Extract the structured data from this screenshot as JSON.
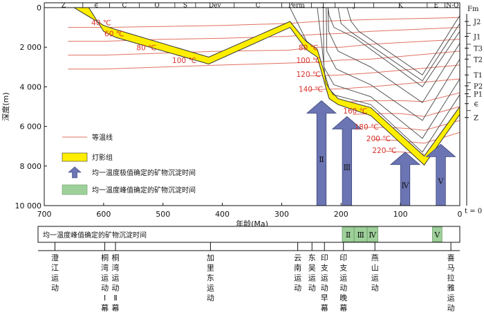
{
  "chart_data": {
    "type": "line",
    "xlabel": "年龄(Ma)",
    "ylabel": "深度(m)",
    "xlim": [
      700,
      0
    ],
    "ylim": [
      10000,
      0
    ],
    "x_ticks": [
      "700",
      "600",
      "500",
      "400",
      "300",
      "200",
      "100",
      "0"
    ],
    "y_ticks": [
      "0",
      "2 000",
      "4 000",
      "6 000",
      "8 000",
      "10 000"
    ],
    "periods": [
      {
        "label": "Z",
        "start": 700,
        "end": 635
      },
      {
        "label": "∈",
        "start": 635,
        "end": 590
      },
      {
        "label": "C",
        "start": 590,
        "end": 540
      },
      {
        "label": "O",
        "start": 540,
        "end": 480
      },
      {
        "label": "S",
        "start": 480,
        "end": 445
      },
      {
        "label": "Dev",
        "start": 445,
        "end": 380
      },
      {
        "label": "C",
        "start": 380,
        "end": 300
      },
      {
        "label": "Perm",
        "start": 300,
        "end": 250
      },
      {
        "label": "T",
        "start": 250,
        "end": 210
      },
      {
        "label": "J",
        "start": 210,
        "end": 145
      },
      {
        "label": "K",
        "start": 145,
        "end": 55
      },
      {
        "label": "E",
        "start": 55,
        "end": 25
      },
      {
        "label": "N-Q",
        "start": 25,
        "end": 0
      }
    ],
    "isotherm_labels": [
      {
        "label": "40 ℃",
        "age": 604,
        "depth": 900
      },
      {
        "label": "60 ℃",
        "age": 582,
        "depth": 1450
      },
      {
        "label": "80 ℃",
        "age": 528,
        "depth": 2150
      },
      {
        "label": "100 ℃",
        "age": 464,
        "depth": 2800
      },
      {
        "label": "80 ℃",
        "age": 255,
        "depth": 2150
      },
      {
        "label": "100 ℃",
        "age": 255,
        "depth": 2800
      },
      {
        "label": "120 ℃",
        "age": 255,
        "depth": 3500
      },
      {
        "label": "140 ℃",
        "age": 251,
        "depth": 4250
      },
      {
        "label": "160 ℃",
        "age": 176,
        "depth": 5350
      },
      {
        "label": "180 ℃",
        "age": 157,
        "depth": 6150
      },
      {
        "label": "200 ℃",
        "age": 137,
        "depth": 6750
      },
      {
        "label": "220 ℃",
        "age": 127,
        "depth": 7350
      }
    ],
    "dengying_group": {
      "top": [
        [
          650,
          0
        ],
        [
          600,
          900
        ],
        [
          580,
          1100
        ],
        [
          423,
          2500
        ],
        [
          286,
          700
        ],
        [
          259,
          1700
        ],
        [
          240,
          2100
        ],
        [
          225,
          3600
        ],
        [
          220,
          4100
        ],
        [
          205,
          4600
        ],
        [
          150,
          5050
        ],
        [
          60,
          7500
        ],
        [
          0,
          5000
        ]
      ],
      "bottom": [
        [
          0,
          5400
        ],
        [
          60,
          7950
        ],
        [
          150,
          5450
        ],
        [
          205,
          4900
        ],
        [
          220,
          4600
        ],
        [
          225,
          4100
        ],
        [
          240,
          2500
        ],
        [
          259,
          2100
        ],
        [
          286,
          1000
        ],
        [
          423,
          2850
        ],
        [
          580,
          1500
        ],
        [
          600,
          1200
        ],
        [
          625,
          0
        ]
      ]
    },
    "burial_lines": [
      [
        [
          222,
          0
        ],
        [
          220,
          400
        ],
        [
          212,
          1000
        ],
        [
          178,
          1500
        ],
        [
          63,
          4000
        ],
        [
          0,
          1200
        ]
      ],
      [
        [
          222,
          0
        ],
        [
          221,
          1200
        ],
        [
          205,
          2200
        ],
        [
          150,
          3000
        ],
        [
          63,
          4800
        ],
        [
          0,
          1800
        ]
      ],
      [
        [
          225,
          0
        ],
        [
          224,
          2200
        ],
        [
          208,
          3100
        ],
        [
          150,
          3900
        ],
        [
          63,
          5700
        ],
        [
          0,
          2600
        ]
      ],
      [
        [
          230,
          0
        ],
        [
          229,
          3000
        ],
        [
          212,
          3900
        ],
        [
          150,
          4500
        ],
        [
          63,
          6600
        ],
        [
          0,
          3600
        ]
      ],
      [
        [
          240,
          0
        ],
        [
          232,
          2000
        ],
        [
          226,
          3800
        ],
        [
          213,
          4400
        ],
        [
          150,
          4900
        ],
        [
          63,
          7300
        ],
        [
          0,
          4400
        ]
      ],
      [
        [
          286,
          0
        ],
        [
          258,
          1700
        ],
        [
          240,
          2100
        ]
      ],
      [
        [
          205,
          0
        ],
        [
          200,
          800
        ],
        [
          185,
          1200
        ],
        [
          63,
          3700
        ],
        [
          0,
          800
        ]
      ],
      [
        [
          190,
          0
        ],
        [
          183,
          700
        ],
        [
          170,
          1200
        ],
        [
          63,
          3400
        ],
        [
          0,
          400
        ]
      ]
    ],
    "isotherms": [
      [
        [
          660,
          1000
        ],
        [
          600,
          1000
        ],
        [
          500,
          950
        ],
        [
          400,
          900
        ],
        [
          290,
          800
        ],
        [
          240,
          700
        ],
        [
          200,
          650
        ],
        [
          150,
          600
        ],
        [
          0,
          500
        ]
      ],
      [
        [
          660,
          1700
        ],
        [
          600,
          1700
        ],
        [
          500,
          1600
        ],
        [
          400,
          1550
        ],
        [
          290,
          1450
        ],
        [
          240,
          1350
        ],
        [
          200,
          1300
        ],
        [
          150,
          1200
        ],
        [
          0,
          1000
        ]
      ],
      [
        [
          660,
          2400
        ],
        [
          600,
          2400
        ],
        [
          500,
          2300
        ],
        [
          400,
          2200
        ],
        [
          290,
          2150
        ],
        [
          240,
          2000
        ],
        [
          200,
          2000
        ],
        [
          150,
          1850
        ],
        [
          0,
          1600
        ]
      ],
      [
        [
          660,
          3100
        ],
        [
          600,
          3100
        ],
        [
          500,
          3000
        ],
        [
          400,
          2900
        ],
        [
          290,
          2800
        ],
        [
          240,
          2750
        ],
        [
          200,
          2650
        ],
        [
          150,
          2600
        ],
        [
          0,
          2200
        ]
      ],
      [
        [
          255,
          3450
        ],
        [
          200,
          3400
        ],
        [
          150,
          3300
        ],
        [
          0,
          2900
        ]
      ],
      [
        [
          253,
          4150
        ],
        [
          200,
          4100
        ],
        [
          150,
          4000
        ],
        [
          0,
          3600
        ]
      ],
      [
        [
          205,
          4800
        ],
        [
          150,
          4700
        ],
        [
          100,
          4700
        ],
        [
          60,
          4750
        ],
        [
          0,
          4300
        ]
      ],
      [
        [
          180,
          5400
        ],
        [
          150,
          5350
        ],
        [
          100,
          5350
        ],
        [
          60,
          5500
        ],
        [
          0,
          5000
        ]
      ],
      [
        [
          160,
          6050
        ],
        [
          120,
          6050
        ],
        [
          90,
          6100
        ],
        [
          60,
          6200
        ],
        [
          0,
          5700
        ]
      ],
      [
        [
          145,
          6650
        ],
        [
          110,
          6700
        ],
        [
          60,
          6850
        ],
        [
          0,
          6300
        ]
      ],
      [
        [
          125,
          7250
        ],
        [
          95,
          7300
        ],
        [
          60,
          7400
        ]
      ]
    ],
    "stage_arrows": [
      {
        "label": "Ⅱ",
        "age": 233,
        "tip_depth": 4700
      },
      {
        "label": "Ⅲ",
        "age": 190,
        "tip_depth": 5500
      },
      {
        "label": "Ⅳ",
        "age": 92,
        "tip_depth": 7300
      },
      {
        "label": "Ⅴ",
        "age": 32,
        "tip_depth": 6900
      }
    ],
    "formations": [
      {
        "label": "J2",
        "depth": 700
      },
      {
        "label": "J1",
        "depth": 1450
      },
      {
        "label": "T3",
        "depth": 2050
      },
      {
        "label": "T2",
        "depth": 2600
      },
      {
        "label": "T1",
        "depth": 3400
      },
      {
        "label": "P2",
        "depth": 3950
      },
      {
        "label": "P1",
        "depth": 4350
      },
      {
        "label": "∈",
        "depth": 4850
      },
      {
        "label": "Z",
        "depth": 5550
      }
    ],
    "formation_title": "Fm",
    "t_label": "t = 0",
    "legend": [
      {
        "label": "等温线",
        "kind": "isotherm"
      },
      {
        "label": "灯影组",
        "kind": "dengying"
      },
      {
        "label": "均一温度极值确定的矿物沉淀时间",
        "kind": "arrow"
      },
      {
        "label": "均一温度峰值确定的矿物沉淀时间",
        "kind": "box"
      }
    ],
    "peak_bar": {
      "title": "均一温度峰值确定的矿物沉淀时间",
      "boxes": [
        {
          "label": "Ⅱ",
          "start": 198,
          "end": 178
        },
        {
          "label": "Ⅲ",
          "start": 178,
          "end": 156
        },
        {
          "label": "Ⅳ",
          "start": 156,
          "end": 138
        },
        {
          "label": "Ⅴ",
          "start": 46,
          "end": 30
        }
      ]
    },
    "events": [
      {
        "label": "澄江运动",
        "age": 682
      },
      {
        "label": "桐湾运动Ⅰ幕",
        "age": 598
      },
      {
        "label": "桐湾运动Ⅱ幕",
        "age": 580
      },
      {
        "label": "加里东运动",
        "age": 420
      },
      {
        "label": "云南运动",
        "age": 273
      },
      {
        "label": "东吴运动",
        "age": 249
      },
      {
        "label": "印支运动早幕",
        "age": 228
      },
      {
        "label": "印支运动晚幕",
        "age": 196
      },
      {
        "label": "燕山运动",
        "age": 143
      },
      {
        "label": "喜马拉雅运动",
        "age": 15
      }
    ],
    "colors": {
      "dengying": "#ffee00",
      "isotherm": "#e07060",
      "arrow": "#6b75b3",
      "peak_box": "#9ed19a"
    }
  }
}
